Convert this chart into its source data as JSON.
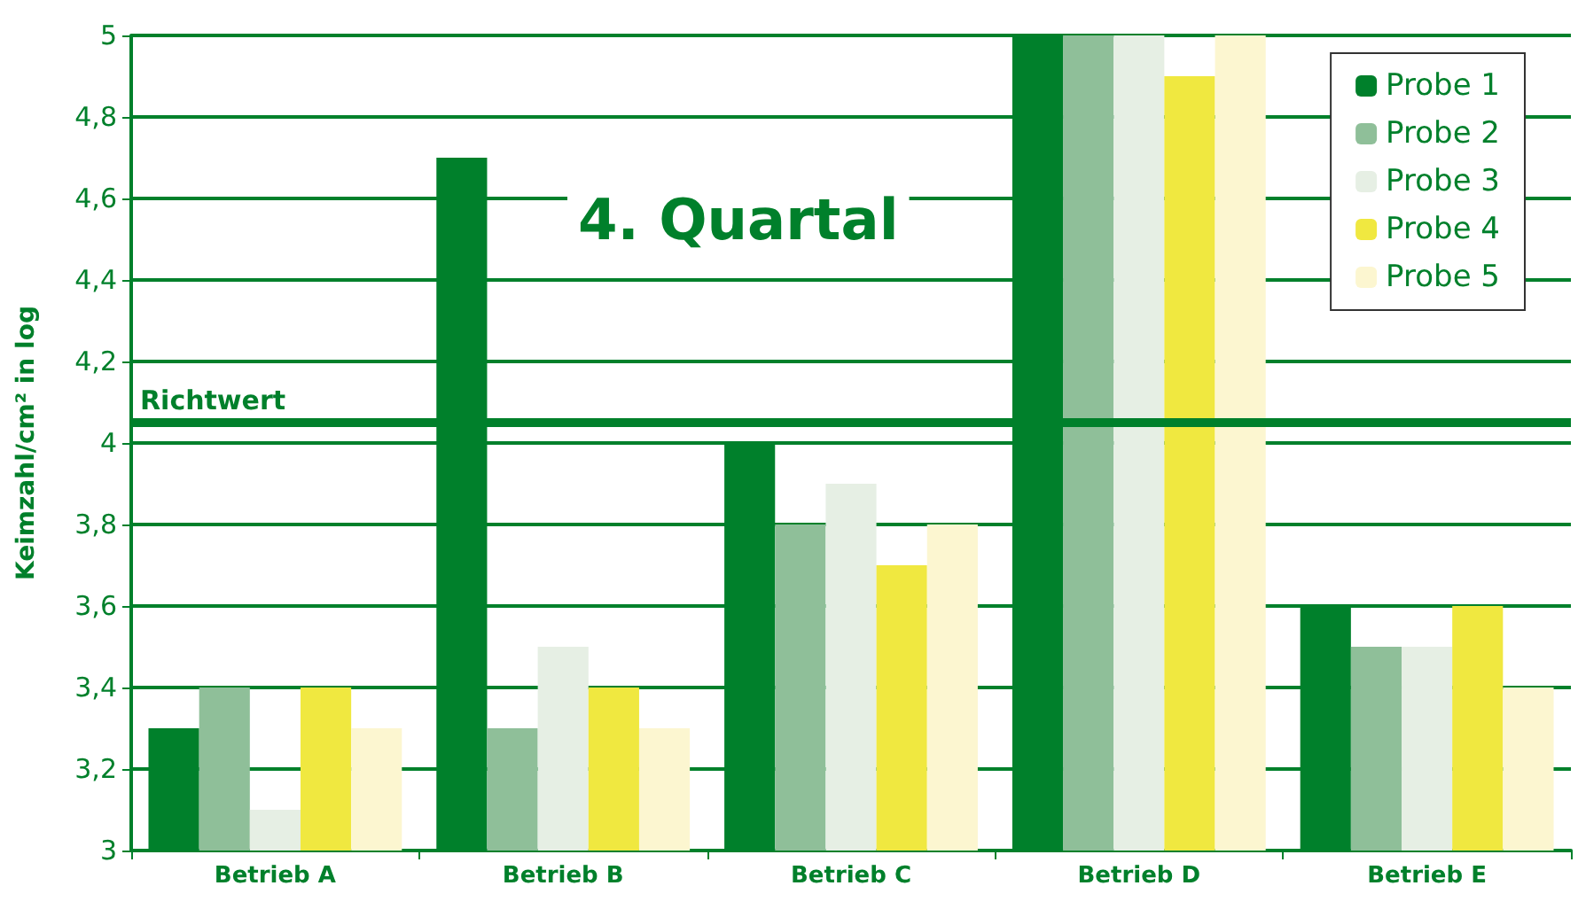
{
  "chart_data": {
    "type": "bar",
    "title": "4. Quartal",
    "ylabel": "Keimzahl/cm² in log",
    "categories": [
      "Betrieb A",
      "Betrieb B",
      "Betrieb C",
      "Betrieb D",
      "Betrieb E"
    ],
    "series": [
      {
        "name": "Probe 1",
        "color": "#00802b",
        "values": [
          3.3,
          4.7,
          4.0,
          5.0,
          3.6
        ]
      },
      {
        "name": "Probe 2",
        "color": "#8fbf99",
        "values": [
          3.4,
          3.3,
          3.8,
          5.0,
          3.5
        ]
      },
      {
        "name": "Probe 3",
        "color": "#e6efe4",
        "values": [
          3.1,
          3.5,
          3.9,
          5.0,
          3.5
        ]
      },
      {
        "name": "Probe 4",
        "color": "#f0e840",
        "values": [
          3.4,
          3.4,
          3.7,
          4.9,
          3.6
        ]
      },
      {
        "name": "Probe 5",
        "color": "#fcf6d0",
        "values": [
          3.3,
          3.3,
          3.8,
          5.0,
          3.4
        ]
      }
    ],
    "ylim": [
      3,
      5
    ],
    "yticks": [
      3,
      {
        "value": 3.2,
        "label": "3,2"
      },
      {
        "value": 3.4,
        "label": "3,4"
      },
      {
        "value": 3.6,
        "label": "3,6"
      },
      {
        "value": 3.8,
        "label": "3,8"
      },
      4,
      {
        "value": 4.2,
        "label": "4,2"
      },
      {
        "value": 4.4,
        "label": "4,4"
      },
      {
        "value": 4.6,
        "label": "4,6"
      },
      {
        "value": 4.8,
        "label": "4,8"
      },
      5
    ],
    "ref_lines": [
      {
        "axis": "y",
        "value": 4.05,
        "label": "Richtwert",
        "color": "#00802b"
      }
    ],
    "grid": "y",
    "legend": "top right"
  }
}
